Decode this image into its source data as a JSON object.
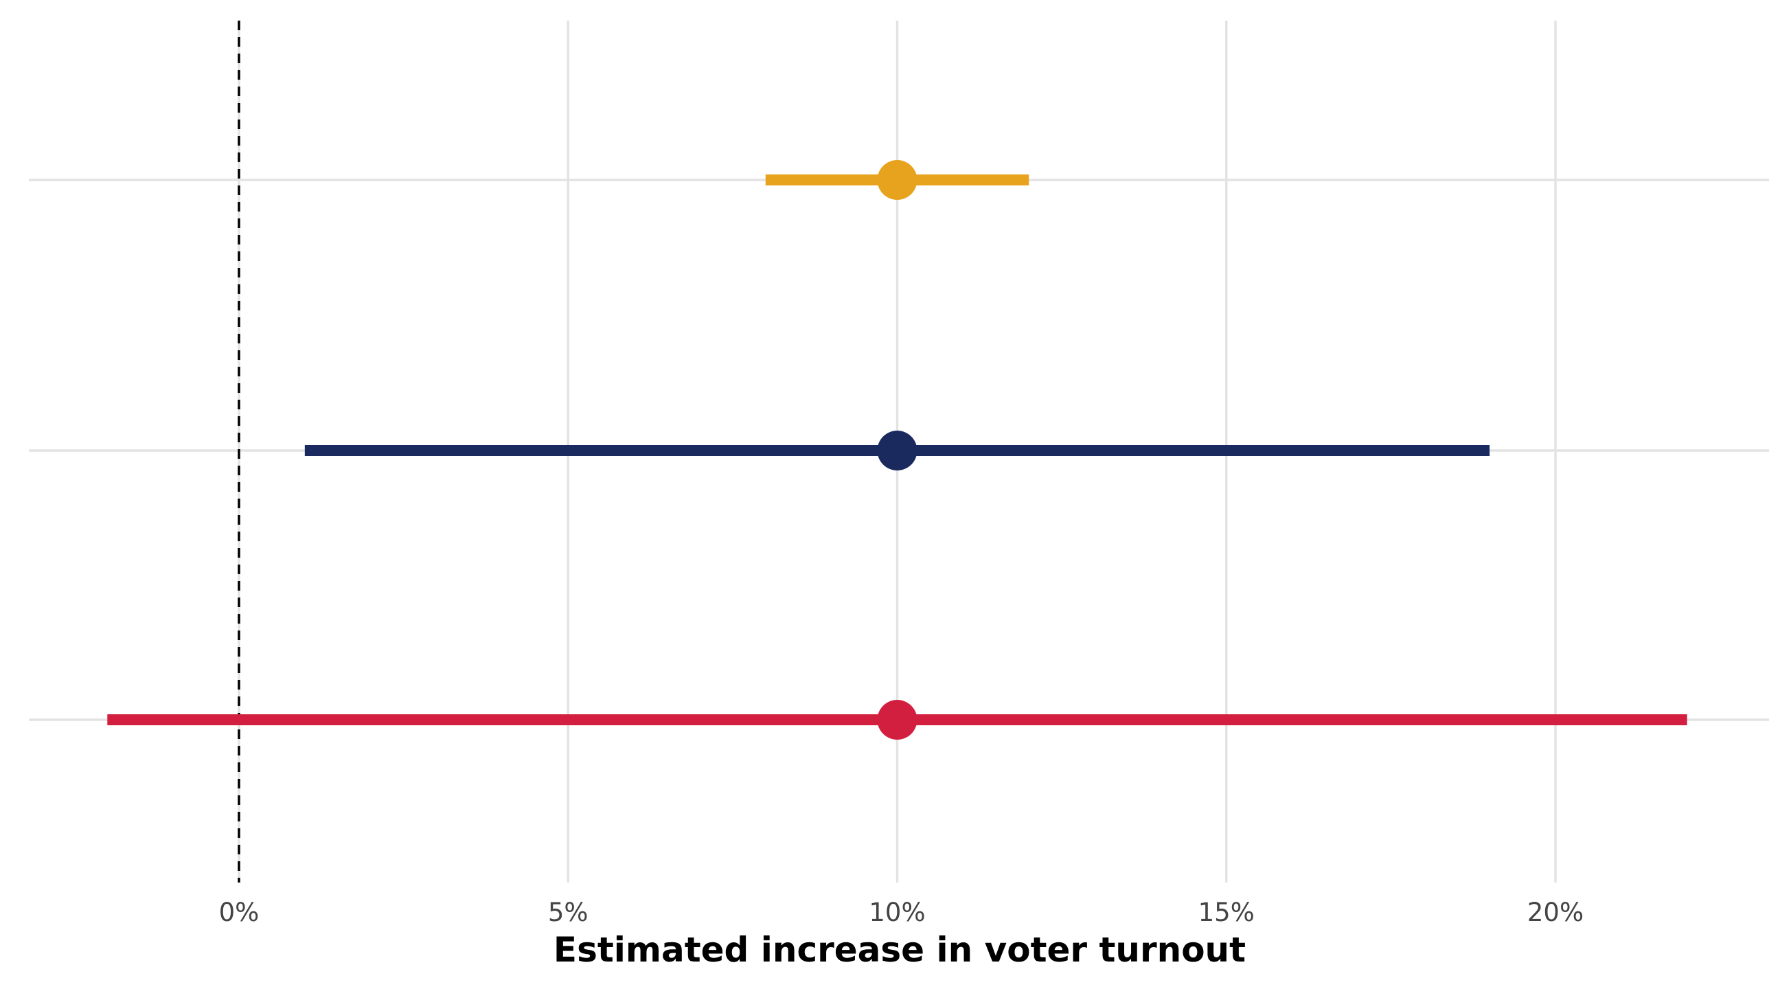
{
  "chart_data": {
    "type": "scatter",
    "subtype": "forest-plot-with-error-bars",
    "xlabel": "Estimated increase in voter turnout",
    "ylabel": "",
    "xlim": [
      -0.03,
      0.235
    ],
    "x_ticks": [
      0,
      0.05,
      0.1,
      0.15,
      0.2
    ],
    "x_tick_labels": [
      "0%",
      "5%",
      "10%",
      "15%",
      "20%"
    ],
    "reference_line": {
      "x": 0,
      "style": "dashed",
      "color": "#000000"
    },
    "grid": true,
    "legend": "none",
    "series": [
      {
        "estimate": 0.1,
        "ci_low": 0.08,
        "ci_high": 0.12,
        "color": "#E8A31E"
      },
      {
        "estimate": 0.1,
        "ci_low": 0.01,
        "ci_high": 0.19,
        "color": "#1B2A5E"
      },
      {
        "estimate": 0.1,
        "ci_low": -0.02,
        "ci_high": 0.22,
        "color": "#D31F3F"
      }
    ]
  }
}
